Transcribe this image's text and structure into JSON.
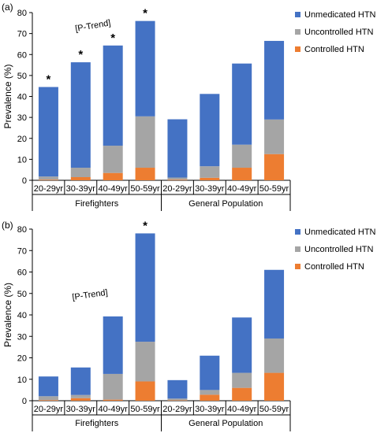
{
  "colors": {
    "unmedicated": "#4472C4",
    "uncontrolled": "#A5A5A5",
    "controlled": "#ED7D31",
    "axis": "#000000",
    "tick": "#595959"
  },
  "legend_labels": [
    "Unmedicated HTN",
    "Uncontrolled HTN",
    "Controlled HTN"
  ],
  "chart_data": [
    {
      "type": "bar",
      "stacked": true,
      "panel_label": "(a)",
      "ylabel": "Prevalence (%)",
      "ylim": [
        0,
        80
      ],
      "yticks": [
        "0",
        "10",
        "20",
        "30",
        "40",
        "50",
        "60",
        "70",
        "80"
      ],
      "annotation": "[P-Trend]",
      "legend_position": "top-right",
      "groups": [
        "Firefighters",
        "General Population"
      ],
      "categories": [
        "20-29yr",
        "30-39yr",
        "40-49yr",
        "50-59yr",
        "20-29yr",
        "30-39yr",
        "40-49yr",
        "50-59yr"
      ],
      "series": [
        {
          "name": "Controlled HTN",
          "values": [
            0.3,
            1.5,
            3.5,
            6,
            0.3,
            1.2,
            6,
            12.5
          ]
        },
        {
          "name": "Uncontrolled HTN",
          "values": [
            1.5,
            4.5,
            13,
            24.5,
            1,
            5.5,
            11,
            16.5
          ]
        },
        {
          "name": "Unmedicated HTN",
          "values": [
            42.7,
            50.3,
            47.8,
            45.5,
            27.8,
            34.5,
            38.7,
            37.5
          ]
        }
      ],
      "totals": [
        44.5,
        56.3,
        64.3,
        76,
        29.1,
        41.2,
        55.7,
        66.5
      ],
      "significance": [
        "*",
        "*",
        "*",
        "*",
        "",
        "",
        "",
        ""
      ]
    },
    {
      "type": "bar",
      "stacked": true,
      "panel_label": "(b)",
      "ylabel": "Prevalence (%)",
      "ylim": [
        0,
        80
      ],
      "yticks": [
        "0",
        "10",
        "20",
        "30",
        "40",
        "50",
        "60",
        "70",
        "80"
      ],
      "annotation": "[P-Trend]",
      "legend_position": "top-right",
      "groups": [
        "Firefighters",
        "General Population"
      ],
      "categories": [
        "20-29yr",
        "30-39yr",
        "40-49yr",
        "50-59yr",
        "20-29yr",
        "30-39yr",
        "40-49yr",
        "50-59yr"
      ],
      "series": [
        {
          "name": "Controlled HTN",
          "values": [
            0.3,
            1.2,
            0.5,
            9,
            0.2,
            2.8,
            6,
            13
          ]
        },
        {
          "name": "Uncontrolled HTN",
          "values": [
            1.8,
            1.5,
            12,
            18.5,
            0.8,
            2.2,
            7,
            16
          ]
        },
        {
          "name": "Unmedicated HTN",
          "values": [
            9.2,
            12.8,
            26.8,
            50.5,
            8.6,
            16,
            25.8,
            32
          ]
        }
      ],
      "totals": [
        11.3,
        15.5,
        39.3,
        78,
        9.6,
        21,
        38.8,
        61
      ],
      "significance": [
        "",
        "",
        "",
        "*",
        "",
        "",
        "",
        ""
      ]
    }
  ]
}
